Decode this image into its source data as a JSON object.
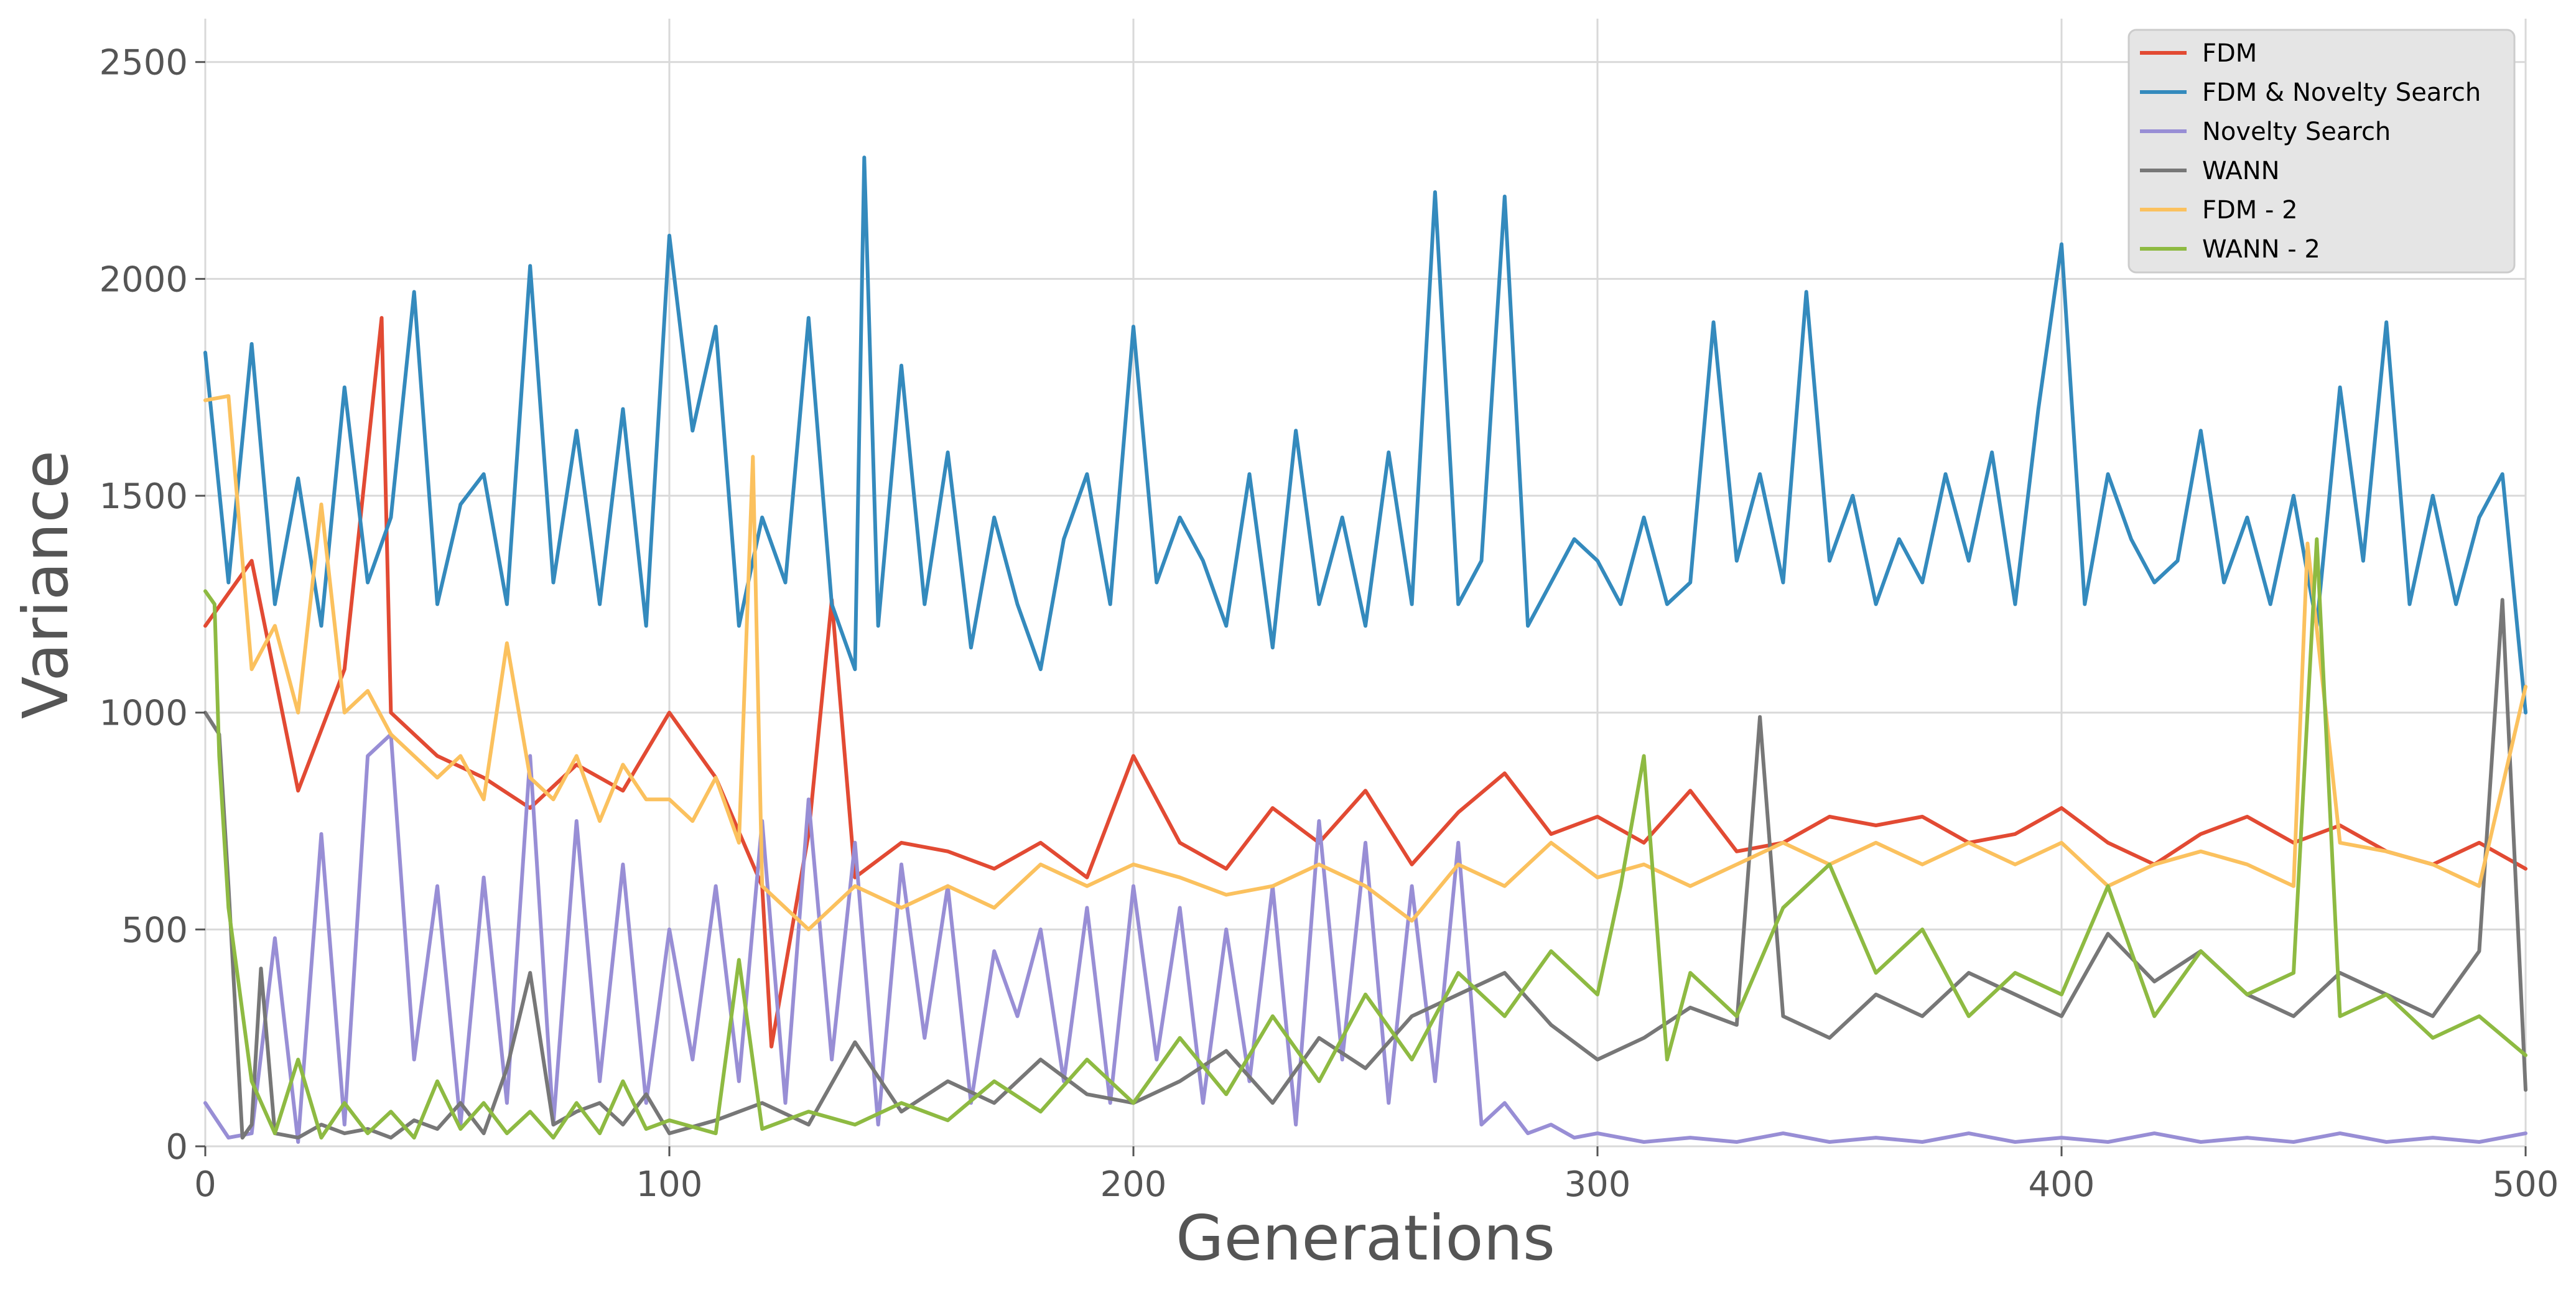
{
  "chart_data": {
    "type": "line",
    "title": "",
    "xlabel": "Generations",
    "ylabel": "Variance",
    "xlim": [
      0,
      500
    ],
    "ylim": [
      0,
      2600
    ],
    "xticks": [
      0,
      100,
      200,
      300,
      400,
      500
    ],
    "yticks": [
      0,
      500,
      1000,
      1500,
      2000,
      2500
    ],
    "grid": true,
    "legend_position": "top-right",
    "series": [
      {
        "name": "FDM",
        "color": "#e24a33",
        "x": [
          0,
          10,
          20,
          30,
          38,
          40,
          50,
          60,
          70,
          80,
          90,
          100,
          110,
          120,
          122,
          130,
          135,
          140,
          150,
          160,
          170,
          180,
          190,
          200,
          210,
          220,
          230,
          240,
          250,
          260,
          270,
          280,
          290,
          300,
          310,
          320,
          330,
          340,
          350,
          360,
          370,
          380,
          390,
          400,
          410,
          420,
          430,
          440,
          450,
          460,
          470,
          480,
          490,
          500
        ],
        "values": [
          1200,
          1350,
          820,
          1100,
          1910,
          1000,
          900,
          850,
          780,
          880,
          820,
          1000,
          850,
          600,
          230,
          720,
          1260,
          620,
          700,
          680,
          640,
          700,
          620,
          900,
          700,
          640,
          780,
          700,
          820,
          650,
          770,
          860,
          720,
          760,
          700,
          820,
          680,
          700,
          760,
          740,
          760,
          700,
          720,
          780,
          700,
          650,
          720,
          760,
          700,
          740,
          680,
          650,
          700,
          640
        ]
      },
      {
        "name": "FDM & Novelty Search",
        "color": "#348abd",
        "x": [
          0,
          5,
          10,
          15,
          20,
          25,
          30,
          35,
          40,
          45,
          50,
          55,
          60,
          65,
          70,
          75,
          80,
          85,
          90,
          95,
          100,
          105,
          110,
          115,
          120,
          125,
          130,
          135,
          140,
          142,
          145,
          150,
          155,
          160,
          165,
          170,
          175,
          180,
          185,
          190,
          195,
          200,
          205,
          210,
          215,
          220,
          225,
          230,
          235,
          240,
          245,
          250,
          255,
          260,
          265,
          270,
          275,
          280,
          285,
          290,
          295,
          300,
          305,
          310,
          315,
          320,
          325,
          330,
          335,
          340,
          345,
          350,
          355,
          360,
          365,
          370,
          375,
          380,
          385,
          390,
          395,
          400,
          405,
          410,
          415,
          420,
          425,
          430,
          435,
          440,
          445,
          450,
          455,
          460,
          465,
          470,
          475,
          480,
          485,
          490,
          495,
          500
        ],
        "values": [
          1830,
          1300,
          1850,
          1250,
          1540,
          1200,
          1750,
          1300,
          1450,
          1970,
          1250,
          1480,
          1550,
          1250,
          2030,
          1300,
          1650,
          1250,
          1700,
          1200,
          2100,
          1650,
          1890,
          1200,
          1450,
          1300,
          1910,
          1250,
          1100,
          2280,
          1200,
          1800,
          1250,
          1600,
          1150,
          1450,
          1250,
          1100,
          1400,
          1550,
          1250,
          1890,
          1300,
          1450,
          1350,
          1200,
          1550,
          1150,
          1650,
          1250,
          1450,
          1200,
          1600,
          1250,
          2200,
          1250,
          1350,
          2190,
          1200,
          1300,
          1400,
          1350,
          1250,
          1450,
          1250,
          1300,
          1900,
          1350,
          1550,
          1300,
          1970,
          1350,
          1500,
          1250,
          1400,
          1300,
          1550,
          1350,
          1600,
          1250,
          1700,
          2080,
          1250,
          1550,
          1400,
          1300,
          1350,
          1650,
          1300,
          1450,
          1250,
          1500,
          1200,
          1750,
          1350,
          1900,
          1250,
          1500,
          1250,
          1450,
          1550,
          1000
        ]
      },
      {
        "name": "Novelty Search",
        "color": "#988ed5",
        "x": [
          0,
          5,
          10,
          15,
          20,
          25,
          30,
          35,
          40,
          45,
          50,
          55,
          60,
          65,
          70,
          75,
          80,
          85,
          90,
          95,
          100,
          105,
          110,
          115,
          120,
          125,
          130,
          135,
          140,
          145,
          150,
          155,
          160,
          165,
          170,
          175,
          180,
          185,
          190,
          195,
          200,
          205,
          210,
          215,
          220,
          225,
          230,
          235,
          240,
          245,
          250,
          255,
          260,
          265,
          270,
          275,
          280,
          285,
          290,
          295,
          300,
          310,
          320,
          330,
          340,
          350,
          360,
          370,
          380,
          390,
          400,
          410,
          420,
          430,
          440,
          450,
          460,
          470,
          480,
          490,
          500
        ],
        "values": [
          100,
          20,
          30,
          480,
          10,
          720,
          50,
          900,
          950,
          200,
          600,
          50,
          620,
          100,
          900,
          50,
          750,
          150,
          650,
          100,
          500,
          200,
          600,
          150,
          750,
          100,
          800,
          200,
          700,
          50,
          650,
          250,
          600,
          100,
          450,
          300,
          500,
          150,
          550,
          100,
          600,
          200,
          550,
          100,
          500,
          150,
          600,
          50,
          750,
          200,
          700,
          100,
          600,
          150,
          700,
          50,
          100,
          30,
          50,
          20,
          30,
          10,
          20,
          10,
          30,
          10,
          20,
          10,
          30,
          10,
          20,
          10,
          30,
          10,
          20,
          10,
          30,
          10,
          20,
          10,
          30
        ]
      },
      {
        "name": "WANN",
        "color": "#777777",
        "x": [
          0,
          3,
          5,
          8,
          10,
          12,
          15,
          20,
          25,
          30,
          35,
          40,
          45,
          50,
          55,
          60,
          65,
          70,
          75,
          80,
          85,
          90,
          95,
          100,
          110,
          120,
          130,
          140,
          150,
          160,
          170,
          180,
          190,
          200,
          210,
          220,
          230,
          240,
          250,
          260,
          270,
          280,
          290,
          300,
          310,
          320,
          330,
          335,
          340,
          350,
          360,
          370,
          380,
          390,
          400,
          410,
          420,
          430,
          440,
          450,
          460,
          470,
          480,
          490,
          495,
          500
        ],
        "values": [
          1000,
          950,
          600,
          20,
          50,
          410,
          30,
          20,
          50,
          30,
          40,
          20,
          60,
          40,
          100,
          30,
          180,
          400,
          50,
          80,
          100,
          50,
          120,
          30,
          60,
          100,
          50,
          240,
          80,
          150,
          100,
          200,
          120,
          100,
          150,
          220,
          100,
          250,
          180,
          300,
          350,
          400,
          280,
          200,
          250,
          320,
          280,
          990,
          300,
          250,
          350,
          300,
          400,
          350,
          300,
          490,
          380,
          450,
          350,
          300,
          400,
          350,
          300,
          450,
          1260,
          130
        ]
      },
      {
        "name": "FDM - 2",
        "color": "#fbc15e",
        "x": [
          0,
          5,
          10,
          15,
          20,
          25,
          30,
          35,
          40,
          45,
          50,
          55,
          60,
          65,
          70,
          75,
          80,
          85,
          90,
          95,
          100,
          105,
          110,
          115,
          118,
          120,
          125,
          130,
          140,
          150,
          160,
          170,
          180,
          190,
          200,
          210,
          220,
          230,
          240,
          250,
          260,
          270,
          280,
          290,
          300,
          310,
          320,
          330,
          340,
          350,
          360,
          370,
          380,
          390,
          400,
          410,
          420,
          430,
          440,
          450,
          453,
          460,
          470,
          480,
          490,
          500
        ],
        "values": [
          1720,
          1730,
          1100,
          1200,
          1000,
          1480,
          1000,
          1050,
          950,
          900,
          850,
          900,
          800,
          1160,
          850,
          800,
          900,
          750,
          880,
          800,
          800,
          750,
          850,
          700,
          1590,
          600,
          550,
          500,
          600,
          550,
          600,
          550,
          650,
          600,
          650,
          620,
          580,
          600,
          650,
          600,
          520,
          650,
          600,
          700,
          620,
          650,
          600,
          650,
          700,
          650,
          700,
          650,
          700,
          650,
          700,
          600,
          650,
          680,
          650,
          600,
          1390,
          700,
          680,
          650,
          600,
          1060
        ]
      },
      {
        "name": "WANN - 2",
        "color": "#8eba42",
        "x": [
          0,
          2,
          3,
          5,
          10,
          15,
          20,
          25,
          30,
          35,
          40,
          45,
          50,
          55,
          60,
          65,
          70,
          75,
          80,
          85,
          90,
          95,
          100,
          110,
          115,
          120,
          130,
          140,
          150,
          160,
          170,
          180,
          190,
          200,
          210,
          220,
          230,
          240,
          250,
          260,
          270,
          280,
          290,
          300,
          305,
          310,
          315,
          320,
          330,
          340,
          350,
          360,
          370,
          380,
          390,
          400,
          410,
          420,
          430,
          440,
          450,
          455,
          460,
          470,
          480,
          490,
          500
        ],
        "values": [
          1280,
          1250,
          900,
          550,
          150,
          30,
          200,
          20,
          100,
          30,
          80,
          20,
          150,
          40,
          100,
          30,
          80,
          20,
          100,
          30,
          150,
          40,
          60,
          30,
          430,
          40,
          80,
          50,
          100,
          60,
          150,
          80,
          200,
          100,
          250,
          120,
          300,
          150,
          350,
          200,
          400,
          300,
          450,
          350,
          600,
          900,
          200,
          400,
          300,
          550,
          650,
          400,
          500,
          300,
          400,
          350,
          600,
          300,
          450,
          350,
          400,
          1400,
          300,
          350,
          250,
          300,
          210
        ]
      }
    ]
  }
}
